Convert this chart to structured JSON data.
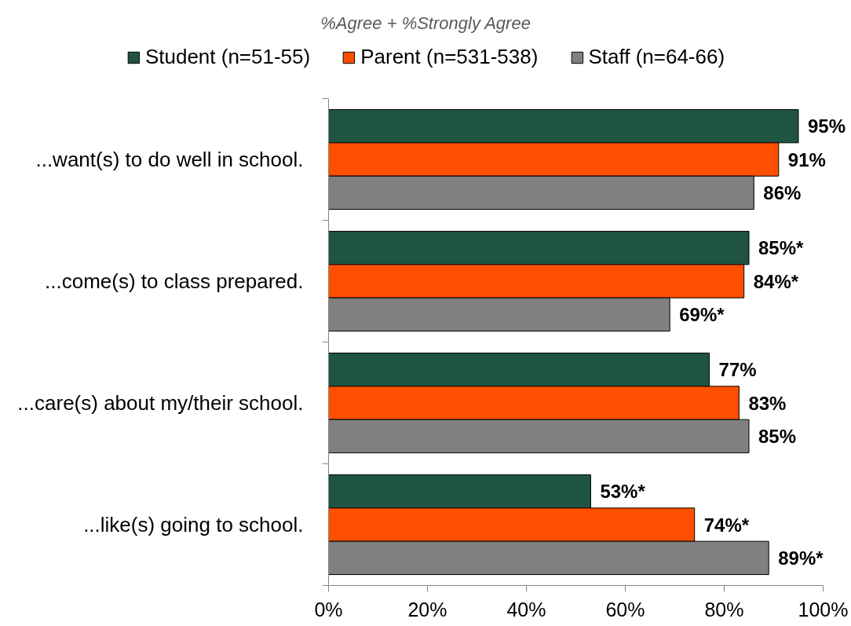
{
  "chart_data": {
    "type": "bar",
    "orientation": "horizontal",
    "title": "%Agree + %Strongly Agree",
    "categories": [
      "...want(s) to do well in school.",
      "...come(s) to class prepared.",
      "...care(s) about my/their school.",
      "...like(s) going to school."
    ],
    "series": [
      {
        "name": "Student (n=51-55)",
        "color": "#1f5443",
        "values": [
          95,
          85,
          77,
          53
        ],
        "value_labels": [
          "95%",
          "85%*",
          "77%",
          "53%*"
        ]
      },
      {
        "name": "Parent (n=531-538)",
        "color": "#ff4f00",
        "values": [
          91,
          84,
          83,
          74
        ],
        "value_labels": [
          "91%",
          "84%*",
          "83%",
          "74%*"
        ]
      },
      {
        "name": "Staff (n=64-66)",
        "color": "#808080",
        "values": [
          86,
          69,
          85,
          89
        ],
        "value_labels": [
          "86%",
          "69%*",
          "85%",
          "89%*"
        ]
      }
    ],
    "xlim": [
      0,
      100
    ],
    "xticks": [
      {
        "value": 0,
        "label": "0%"
      },
      {
        "value": 20,
        "label": "20%"
      },
      {
        "value": 40,
        "label": "40%"
      },
      {
        "value": 60,
        "label": "60%"
      },
      {
        "value": 80,
        "label": "80%"
      },
      {
        "value": 100,
        "label": "100%"
      }
    ],
    "legend": "top"
  }
}
